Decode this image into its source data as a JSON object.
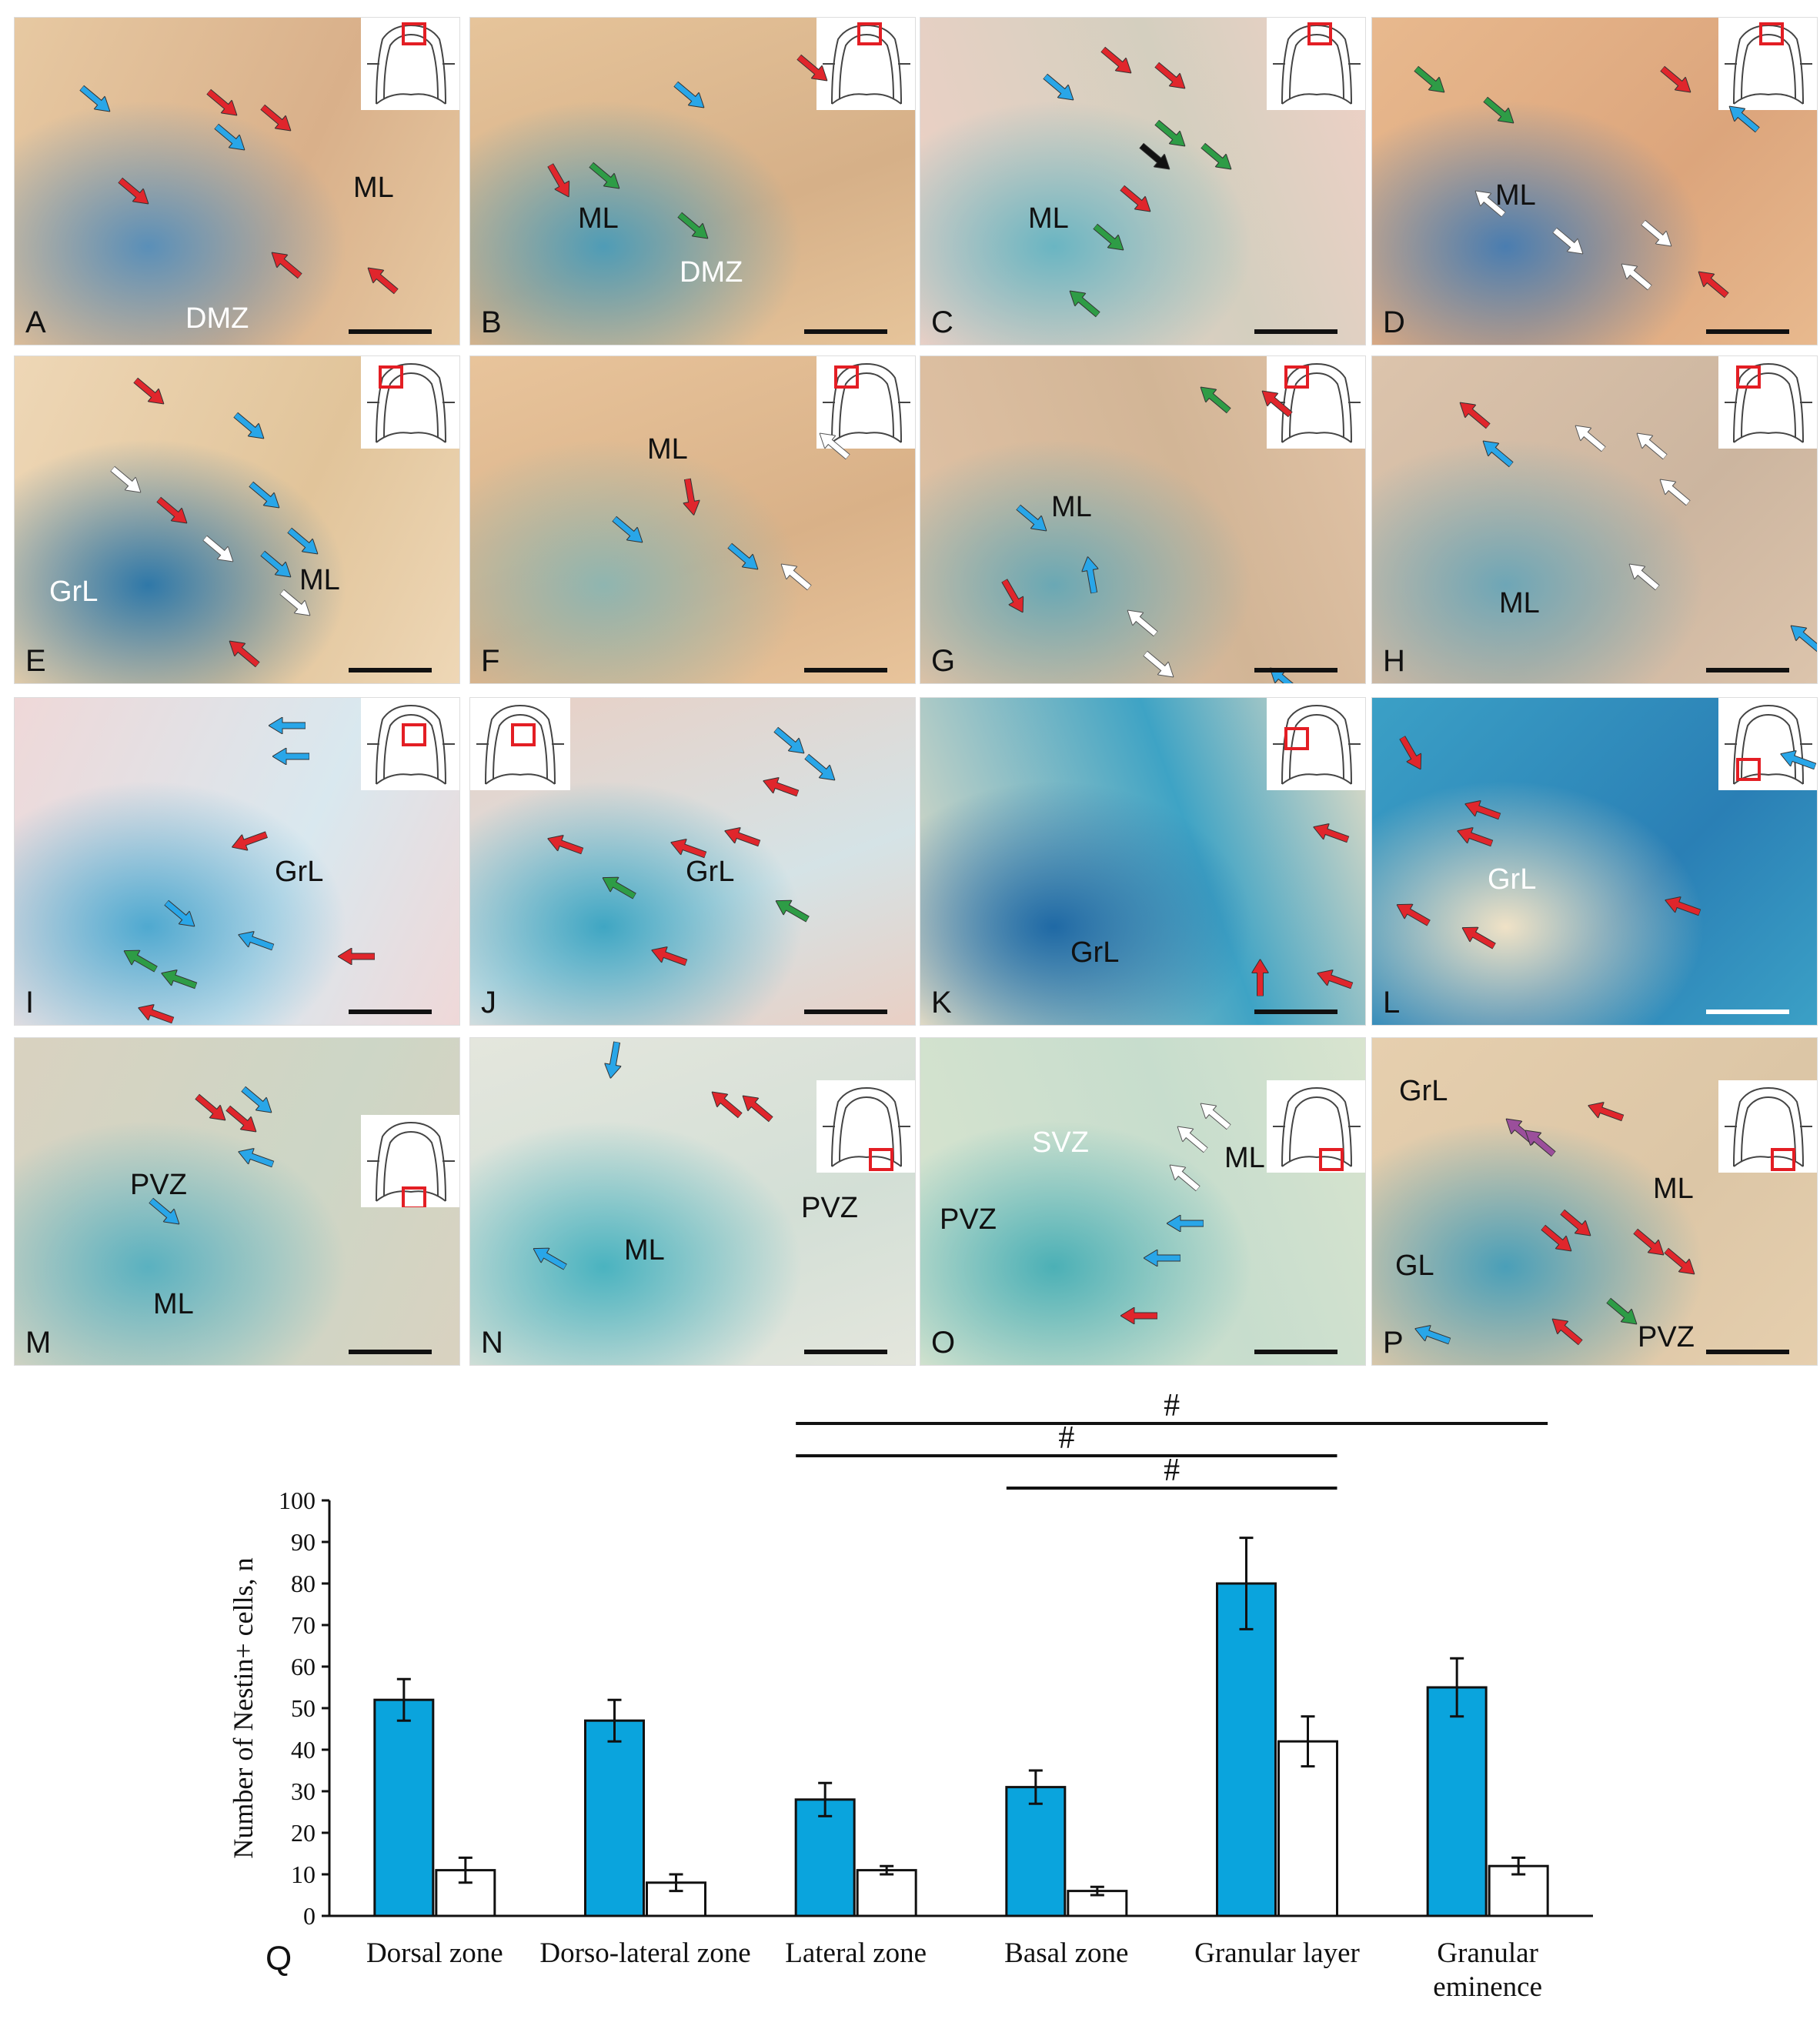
{
  "colors": {
    "bar_fill": "#0aa4dd",
    "bar_white": "#ffffff",
    "axis": "#111111",
    "arrow_red": "#e0262c",
    "arrow_blue": "#29a6e8",
    "arrow_green": "#2e9c46",
    "arrow_white": "#ffffff",
    "arrow_black": "#111111",
    "arrow_purple": "#9b4f9b",
    "inset_box": "#e31e24"
  },
  "panels": [
    {
      "letter": "A",
      "labels": [
        "ML",
        "DMZ"
      ],
      "bg": [
        "#e7c9a2",
        "#d9b08a",
        "#5a8fb8"
      ]
    },
    {
      "letter": "B",
      "labels": [
        "ML",
        "DMZ"
      ],
      "bg": [
        "#e6c49a",
        "#d6b088",
        "#4f9cb6"
      ]
    },
    {
      "letter": "C",
      "labels": [
        "ML"
      ],
      "bg": [
        "#efd1c6",
        "#d4cfbf",
        "#6ab5c2"
      ]
    },
    {
      "letter": "D",
      "labels": [
        "ML"
      ],
      "bg": [
        "#e8b98e",
        "#dca57c",
        "#4a7db0"
      ]
    },
    {
      "letter": "E",
      "labels": [
        "ML",
        "GrL"
      ],
      "bg": [
        "#eed7b6",
        "#e1c49a",
        "#2f78a8"
      ]
    },
    {
      "letter": "F",
      "labels": [
        "ML"
      ],
      "bg": [
        "#e8c49b",
        "#d9b188",
        "#8fb5b0"
      ]
    },
    {
      "letter": "G",
      "labels": [
        "ML"
      ],
      "bg": [
        "#e1c3a6",
        "#d2b596",
        "#6aa8b4"
      ]
    },
    {
      "letter": "H",
      "labels": [
        "ML"
      ],
      "bg": [
        "#dcc4ac",
        "#ccb59f",
        "#6ea6b6"
      ]
    },
    {
      "letter": "I",
      "labels": [
        "GrL"
      ],
      "bg": [
        "#efd8d8",
        "#d9e8ef",
        "#4fa9d0"
      ]
    },
    {
      "letter": "J",
      "labels": [
        "GrL"
      ],
      "bg": [
        "#e9cfc4",
        "#d5e3e6",
        "#3fa6c3"
      ]
    },
    {
      "letter": "K",
      "labels": [
        "GrL"
      ],
      "bg": [
        "#eadfc6",
        "#3ea3c5",
        "#1f69a5"
      ]
    },
    {
      "letter": "L",
      "labels": [
        "GrL"
      ],
      "bg": [
        "#3ba0c6",
        "#2a7fb5",
        "#f0e2c6"
      ]
    },
    {
      "letter": "M",
      "labels": [
        "PVZ",
        "ML"
      ],
      "bg": [
        "#d9d2c0",
        "#cdd6c6",
        "#5ab1c0"
      ]
    },
    {
      "letter": "N",
      "labels": [
        "ML",
        "PVZ"
      ],
      "bg": [
        "#e4e6dd",
        "#d3dfd6",
        "#4ab3c0"
      ]
    },
    {
      "letter": "O",
      "labels": [
        "SVZ",
        "ML",
        "PVZ"
      ],
      "bg": [
        "#d8e4cf",
        "#c7ddcd",
        "#4bb0b6"
      ]
    },
    {
      "letter": "P",
      "labels": [
        "GrL",
        "ML",
        "GL",
        "PVZ"
      ],
      "bg": [
        "#e6cfae",
        "#dcc6a6",
        "#4a9fb8"
      ]
    }
  ],
  "significance": [
    {
      "from": 2,
      "to": 5,
      "label": "#"
    },
    {
      "from": 2,
      "to": 4,
      "label": "#"
    },
    {
      "from": 3,
      "to": 4,
      "label": "#"
    }
  ],
  "panel_q_letter": "Q",
  "chart_data": {
    "type": "bar",
    "categories": [
      "Dorsal zone",
      "Dorso-lateral zone",
      "Lateral zone",
      "Basal zone",
      "Granular layer",
      "Granular eminence"
    ],
    "category_lines": [
      [
        "Dorsal zone"
      ],
      [
        "Dorso-lateral zone"
      ],
      [
        "Lateral zone"
      ],
      [
        "Basal zone"
      ],
      [
        "Granular layer"
      ],
      [
        "Granular",
        "eminence"
      ]
    ],
    "series": [
      {
        "values": [
          52,
          47,
          28,
          31,
          80,
          55
        ],
        "errors": [
          5,
          5,
          4,
          4,
          11,
          7
        ],
        "fill": "#0aa4dd"
      },
      {
        "values": [
          11,
          8,
          11,
          6,
          42,
          12
        ],
        "errors": [
          3,
          2,
          1,
          1,
          6,
          2
        ],
        "fill": "#ffffff"
      }
    ],
    "ylabel": "Number of Nestin+ cells, n",
    "xlabel": "",
    "ylim": [
      0,
      100
    ],
    "yticks": [
      0,
      10,
      20,
      30,
      40,
      50,
      60,
      70,
      80,
      90,
      100
    ],
    "grid": false
  }
}
